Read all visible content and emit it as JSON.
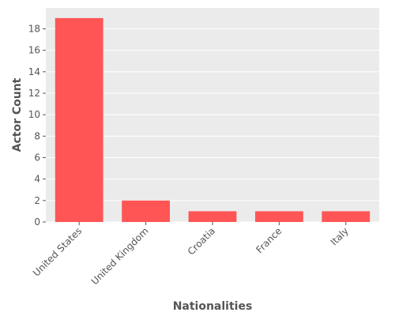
{
  "chart_data": {
    "type": "bar",
    "title": "",
    "xlabel": "Nationalities",
    "ylabel": "Actor Count",
    "categories": [
      "United States",
      "United Kingdom",
      "Croatia",
      "France",
      "Italy"
    ],
    "values": [
      19,
      2,
      1,
      1,
      1
    ],
    "ylim": [
      0,
      19.95
    ],
    "yticks": [
      0,
      2,
      4,
      6,
      8,
      10,
      12,
      14,
      16,
      18
    ],
    "grid": true,
    "bar_color": "#ff5555",
    "plot_background": "#ebebeb",
    "grid_color": "#ffffff",
    "text_color": "#555555"
  }
}
